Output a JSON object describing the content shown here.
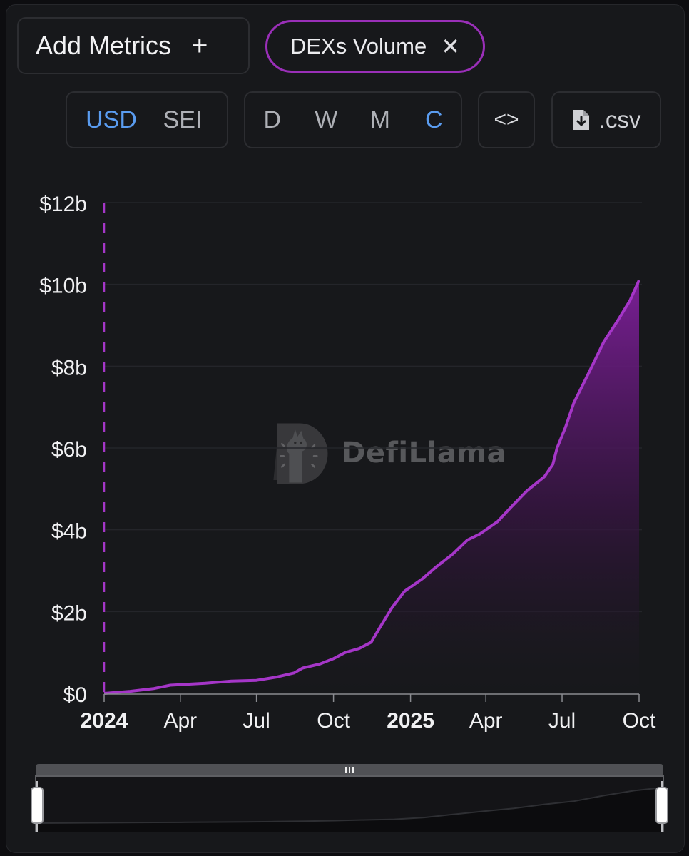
{
  "controls": {
    "add_metrics_label": "Add Metrics",
    "add_icon": "plus-icon",
    "metric_pill_label": "DEXs Volume",
    "close_icon": "close-icon",
    "currency_options": [
      "USD",
      "SEI"
    ],
    "currency_selected": "USD",
    "period_options": [
      "D",
      "W",
      "M",
      "C"
    ],
    "period_selected": "C",
    "embed_icon": "code-icon",
    "csv_label": ".csv",
    "csv_icon": "file-download-icon"
  },
  "watermark": {
    "text": "DefiLlama",
    "icon": "llama-logo"
  },
  "colors": {
    "accent": "#a536c8",
    "active": "#5a9cf0",
    "background": "#17181b"
  },
  "chart_data": {
    "type": "area",
    "x_ticks": [
      {
        "date": "2024-01-01",
        "label": "2024",
        "bold": true
      },
      {
        "date": "2024-04-01",
        "label": "Apr",
        "bold": false
      },
      {
        "date": "2024-07-01",
        "label": "Jul",
        "bold": false
      },
      {
        "date": "2024-10-01",
        "label": "Oct",
        "bold": false
      },
      {
        "date": "2025-01-01",
        "label": "2025",
        "bold": true
      },
      {
        "date": "2025-04-01",
        "label": "Apr",
        "bold": false
      },
      {
        "date": "2025-07-01",
        "label": "Jul",
        "bold": false
      },
      {
        "date": "2025-10-01",
        "label": "Oct",
        "bold": false
      }
    ],
    "y_ticks": [
      0,
      2,
      4,
      6,
      8,
      10,
      12
    ],
    "y_tick_labels": [
      "$0",
      "$2b",
      "$4b",
      "$6b",
      "$8b",
      "$10b",
      "$12b"
    ],
    "ylim": [
      0,
      12
    ],
    "y_unit": "USD billions",
    "grid": true,
    "marker_line_date": "2024-01-01",
    "series": [
      {
        "values": [
          [
            "2024-01-01",
            0.0
          ],
          [
            "2024-02-01",
            0.05
          ],
          [
            "2024-03-01",
            0.12
          ],
          [
            "2024-03-20",
            0.2
          ],
          [
            "2024-05-01",
            0.25
          ],
          [
            "2024-06-01",
            0.3
          ],
          [
            "2024-07-01",
            0.32
          ],
          [
            "2024-07-25",
            0.4
          ],
          [
            "2024-08-15",
            0.5
          ],
          [
            "2024-08-25",
            0.62
          ],
          [
            "2024-09-15",
            0.72
          ],
          [
            "2024-10-01",
            0.85
          ],
          [
            "2024-10-15",
            1.0
          ],
          [
            "2024-11-01",
            1.1
          ],
          [
            "2024-11-15",
            1.25
          ],
          [
            "2024-11-25",
            1.6
          ],
          [
            "2024-12-10",
            2.1
          ],
          [
            "2024-12-25",
            2.5
          ],
          [
            "2025-01-15",
            2.8
          ],
          [
            "2025-02-01",
            3.1
          ],
          [
            "2025-02-20",
            3.4
          ],
          [
            "2025-03-10",
            3.75
          ],
          [
            "2025-03-25",
            3.9
          ],
          [
            "2025-04-15",
            4.2
          ],
          [
            "2025-05-01",
            4.55
          ],
          [
            "2025-05-20",
            4.95
          ],
          [
            "2025-06-10",
            5.3
          ],
          [
            "2025-06-20",
            5.6
          ],
          [
            "2025-06-25",
            6.0
          ],
          [
            "2025-07-05",
            6.5
          ],
          [
            "2025-07-15",
            7.1
          ],
          [
            "2025-08-01",
            7.8
          ],
          [
            "2025-08-20",
            8.6
          ],
          [
            "2025-09-05",
            9.1
          ],
          [
            "2025-09-20",
            9.6
          ],
          [
            "2025-10-01",
            10.1
          ]
        ]
      }
    ],
    "overview": {
      "values": [
        0.0,
        0.05,
        0.1,
        0.15,
        0.2,
        0.25,
        0.3,
        0.35,
        0.45,
        0.55,
        0.7,
        0.9,
        1.1,
        1.6,
        2.5,
        3.4,
        4.2,
        5.3,
        6.2,
        7.8,
        9.2,
        10.1
      ]
    }
  }
}
